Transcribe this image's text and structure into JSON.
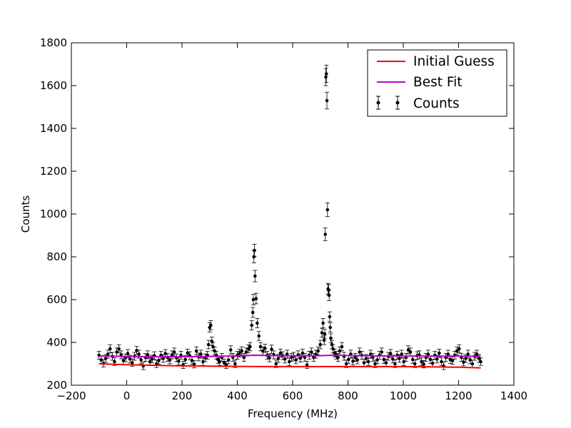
{
  "chart_data": {
    "type": "scatter",
    "xlabel": "Frequency (MHz)",
    "ylabel": "Counts",
    "xlim": [
      -200,
      1400
    ],
    "ylim": [
      200,
      1800
    ],
    "x_ticks": [
      "−200",
      "0",
      "200",
      "400",
      "600",
      "800",
      "1000",
      "1200",
      "1400"
    ],
    "y_ticks": [
      "200",
      "400",
      "600",
      "800",
      "1000",
      "1200",
      "1400",
      "1600",
      "1800"
    ],
    "grid": false,
    "legend": {
      "placement": "top-right",
      "entries": [
        "Initial Guess",
        "Best Fit",
        "Counts"
      ]
    },
    "colors": {
      "initial_guess": "#ff0000",
      "best_fit": "#bf00bf",
      "counts": "#000000"
    },
    "series": [
      {
        "name": "Initial Guess",
        "kind": "line",
        "x": [
          -100,
          0,
          100,
          200,
          300,
          400,
          500,
          600,
          700,
          800,
          900,
          1000,
          1100,
          1200,
          1280
        ],
        "y": [
          300,
          296,
          293,
          290,
          289,
          288,
          287,
          287,
          287,
          287,
          287,
          287,
          286,
          284,
          281
        ]
      },
      {
        "name": "Best Fit",
        "kind": "line",
        "x": [
          -100,
          0,
          100,
          200,
          300,
          400,
          460,
          500,
          600,
          700,
          740,
          800,
          900,
          1000,
          1100,
          1200,
          1280
        ],
        "y": [
          337,
          334,
          333,
          333,
          334,
          337,
          340,
          339,
          337,
          338,
          340,
          339,
          337,
          336,
          336,
          336,
          335
        ]
      },
      {
        "name": "Counts",
        "kind": "errorbar",
        "x": [
          -100,
          -92,
          -84,
          -76,
          -68,
          -60,
          -52,
          -44,
          -36,
          -28,
          -20,
          -12,
          -4,
          4,
          12,
          20,
          28,
          36,
          44,
          52,
          60,
          68,
          76,
          84,
          92,
          100,
          108,
          116,
          124,
          132,
          140,
          148,
          156,
          164,
          172,
          180,
          188,
          196,
          204,
          212,
          220,
          228,
          236,
          244,
          252,
          260,
          268,
          276,
          284,
          292,
          296,
          300,
          304,
          308,
          312,
          318,
          324,
          330,
          336,
          344,
          352,
          360,
          368,
          376,
          384,
          392,
          400,
          408,
          416,
          424,
          432,
          440,
          446,
          452,
          456,
          458,
          460,
          462,
          464,
          468,
          472,
          478,
          484,
          492,
          500,
          508,
          516,
          524,
          532,
          540,
          548,
          556,
          564,
          572,
          580,
          588,
          596,
          604,
          612,
          620,
          628,
          636,
          644,
          652,
          660,
          668,
          676,
          684,
          692,
          700,
          706,
          710,
          714,
          716,
          718,
          720,
          722,
          724,
          726,
          728,
          730,
          732,
          734,
          736,
          738,
          742,
          746,
          752,
          758,
          764,
          770,
          778,
          786,
          794,
          802,
          810,
          818,
          826,
          834,
          842,
          850,
          858,
          866,
          874,
          882,
          890,
          898,
          906,
          914,
          922,
          930,
          938,
          946,
          954,
          962,
          970,
          978,
          986,
          994,
          1002,
          1010,
          1018,
          1026,
          1034,
          1042,
          1050,
          1058,
          1066,
          1074,
          1082,
          1090,
          1098,
          1106,
          1114,
          1122,
          1130,
          1138,
          1146,
          1154,
          1162,
          1170,
          1178,
          1186,
          1194,
          1202,
          1210,
          1218,
          1226,
          1234,
          1242,
          1250,
          1258,
          1266,
          1274,
          1280
        ],
        "y": [
          340,
          318,
          302,
          325,
          345,
          370,
          335,
          310,
          355,
          370,
          342,
          315,
          328,
          348,
          322,
          305,
          335,
          362,
          345,
          318,
          290,
          330,
          342,
          310,
          322,
          338,
          300,
          315,
          340,
          325,
          348,
          330,
          318,
          342,
          355,
          328,
          312,
          340,
          295,
          320,
          350,
          338,
          315,
          298,
          360,
          332,
          345,
          310,
          328,
          340,
          390,
          470,
          480,
          405,
          380,
          360,
          340,
          320,
          310,
          330,
          305,
          295,
          318,
          365,
          330,
          300,
          340,
          350,
          360,
          330,
          355,
          370,
          380,
          480,
          540,
          600,
          800,
          830,
          710,
          605,
          490,
          430,
          380,
          360,
          372,
          340,
          328,
          368,
          342,
          300,
          325,
          350,
          338,
          322,
          345,
          310,
          330,
          335,
          318,
          342,
          326,
          350,
          330,
          295,
          340,
          355,
          330,
          345,
          360,
          390,
          445,
          490,
          410,
          440,
          905,
          1640,
          1655,
          1530,
          1020,
          650,
          645,
          620,
          520,
          470,
          420,
          390,
          370,
          350,
          340,
          330,
          360,
          380,
          335,
          300,
          320,
          345,
          312,
          330,
          318,
          355,
          340,
          305,
          325,
          310,
          345,
          330,
          300,
          318,
          340,
          355,
          320,
          305,
          335,
          348,
          322,
          300,
          340,
          325,
          345,
          310,
          330,
          365,
          355,
          320,
          300,
          338,
          342,
          310,
          298,
          330,
          345,
          320,
          302,
          340,
          322,
          350,
          310,
          290,
          330,
          345,
          320,
          315,
          340,
          360,
          370,
          330,
          308,
          325,
          345,
          318,
          300,
          335,
          345,
          325,
          310
        ]
      }
    ]
  }
}
